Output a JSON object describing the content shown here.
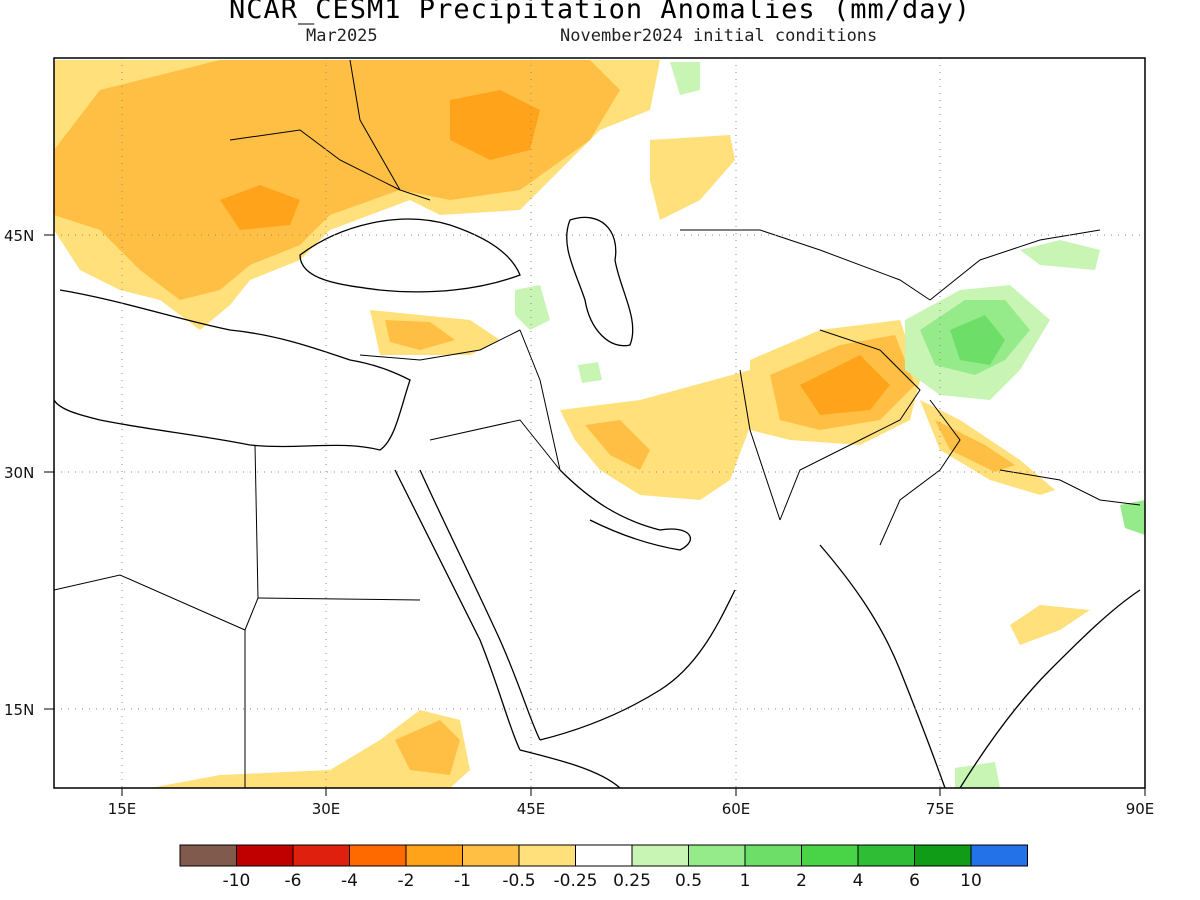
{
  "title": "NCAR_CESM1 Precipitation Anomalies (mm/day)",
  "valid_month": "Mar2025",
  "init": "November2024 initial conditions",
  "lat_labels": [
    "45N",
    "30N",
    "15N"
  ],
  "lon_labels": [
    "15E",
    "30E",
    "45E",
    "60E",
    "75E",
    "90E"
  ],
  "colorbar": {
    "colors": [
      "#7f5a4d",
      "#c00000",
      "#e0200e",
      "#ff6a00",
      "#ffa31a",
      "#ffbf45",
      "#ffe07a",
      "#ffffff",
      "#c8f5b4",
      "#95ea8a",
      "#6ddf68",
      "#48d446",
      "#2fbd35",
      "#109c16",
      "#2472e8"
    ],
    "labels": [
      "-10",
      "-6",
      "-4",
      "-2",
      "-1",
      "-0.5",
      "-0.25",
      "0.25",
      "0.5",
      "1",
      "2",
      "4",
      "6",
      "10"
    ]
  }
}
